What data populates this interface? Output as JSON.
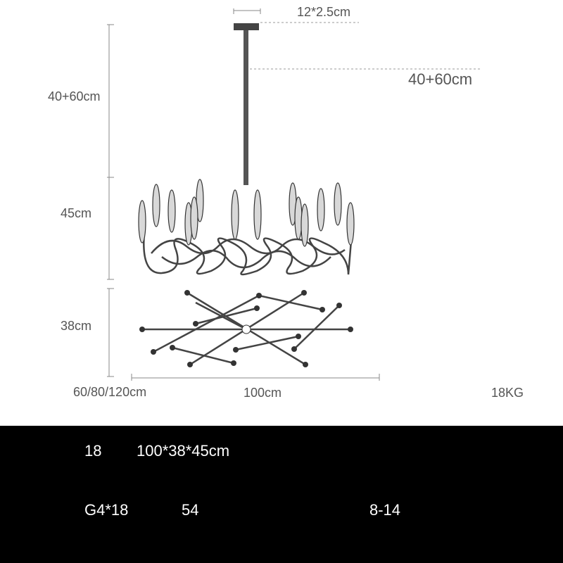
{
  "dimensions": {
    "canopy": "12*2.5cm",
    "drop_right": "40+60cm",
    "drop_left": "40+60cm",
    "body_height": "45cm",
    "depth": "38cm",
    "options": "60/80/120cm",
    "width": "100cm",
    "weight": "18KG"
  },
  "specs": {
    "rows": [
      [
        "18",
        "100*38*45cm"
      ],
      [
        "G4*18",
        "54",
        "8-14"
      ]
    ]
  }
}
